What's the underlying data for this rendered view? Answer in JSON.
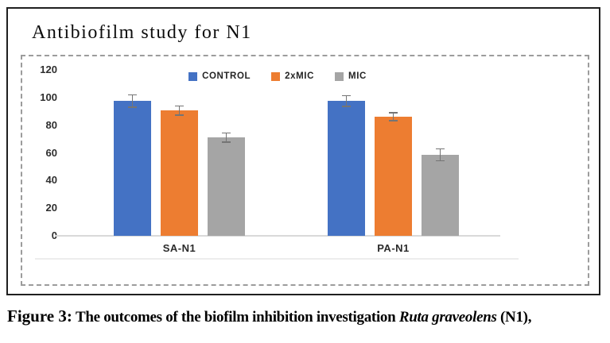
{
  "figure": {
    "title": "Antibiofilm study for N1",
    "caption": {
      "label": "Figure 3:",
      "text_before_italic": " The outcomes of the biofilm inhibition investigation ",
      "italic": "Ruta graveolens",
      "text_after_italic": " (N1),"
    }
  },
  "chart_data": {
    "type": "bar",
    "title": "Antibiofilm study for N1",
    "categories": [
      "SA-N1",
      "PA-N1"
    ],
    "series": [
      {
        "name": "CONTROL",
        "color": "#4472C4",
        "values": [
          97.5,
          97.5
        ],
        "errors": [
          4.5,
          4.0
        ]
      },
      {
        "name": "2xMIC",
        "color": "#ED7D31",
        "values": [
          90.5,
          86.0
        ],
        "errors": [
          3.5,
          3.0
        ]
      },
      {
        "name": "MIC",
        "color": "#A5A5A5",
        "values": [
          71.0,
          58.5
        ],
        "errors": [
          3.5,
          4.5
        ]
      }
    ],
    "xlabel": "",
    "ylabel": "",
    "ylim": [
      0,
      120
    ],
    "yticks": [
      0,
      20,
      40,
      60,
      80,
      100,
      120
    ],
    "grid": false,
    "legend_position": "top-center",
    "plot_background": "#ffffff",
    "axis_line_color": "#d9d9d9",
    "error_bar_color": "#757575"
  }
}
